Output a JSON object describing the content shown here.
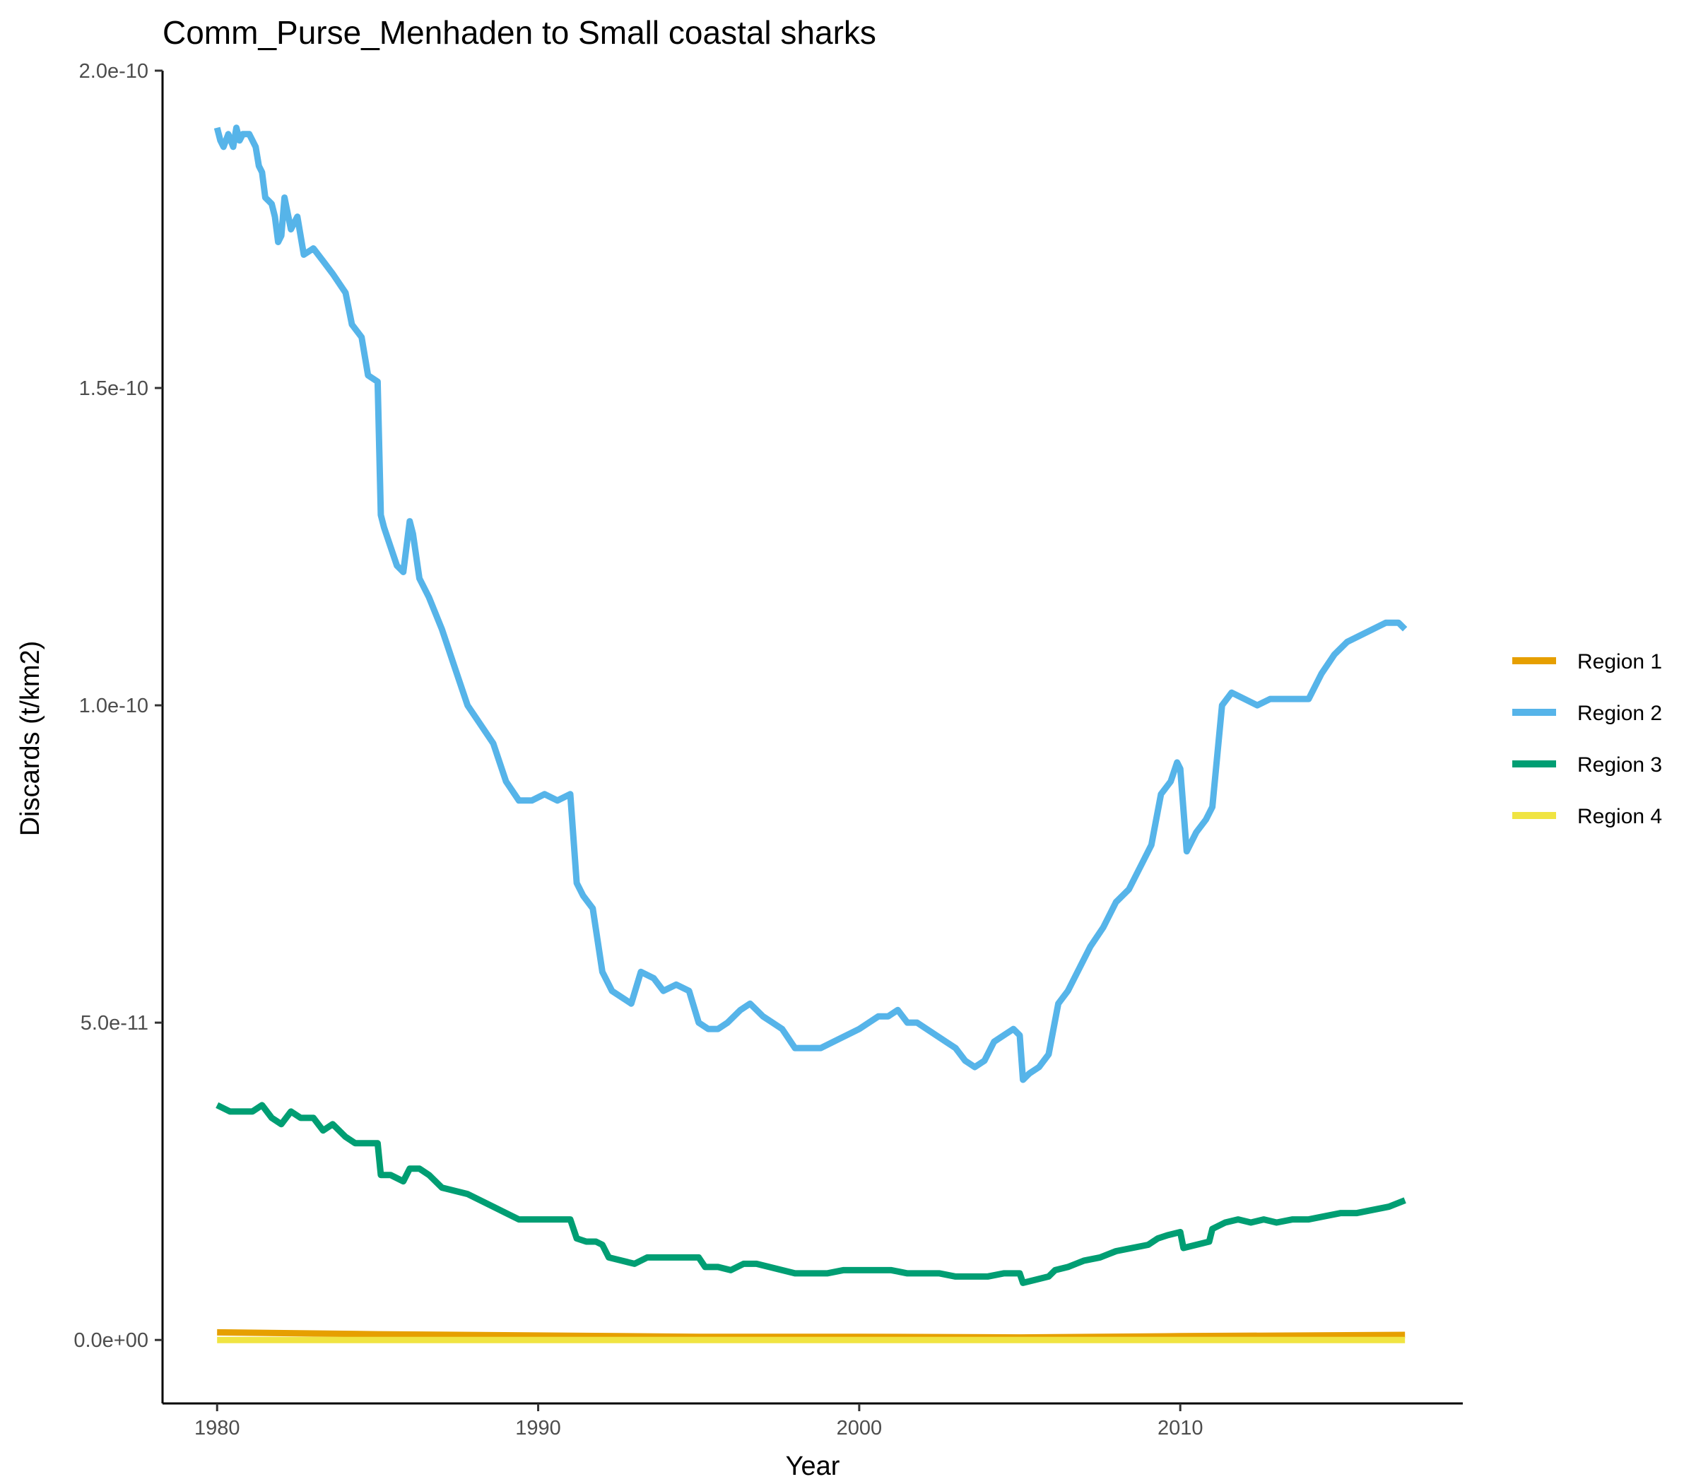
{
  "chart_data": {
    "type": "line",
    "title": "Comm_Purse_Menhaden to Small coastal sharks",
    "xlabel": "Year",
    "ylabel": "Discards (t/km2)",
    "xlim": [
      1978.3,
      2018.8
    ],
    "ylim": [
      -1e-11,
      2e-10
    ],
    "x_ticks": [
      1980,
      1990,
      2000,
      2010
    ],
    "x_tick_labels": [
      "1980",
      "1990",
      "2000",
      "2010"
    ],
    "y_ticks": [
      0,
      5e-11,
      1e-10,
      1.5e-10,
      2e-10
    ],
    "y_tick_labels": [
      "0.0e+00",
      "5.0e-11",
      "1.0e-10",
      "1.5e-10",
      "2.0e-10"
    ],
    "grid": false,
    "legend_position": "right",
    "series": [
      {
        "name": "Region 1",
        "color": "#E69F00",
        "x": [
          1980.0,
          1985.0,
          1990.0,
          1995.0,
          2000.0,
          2005.0,
          2010.0,
          2017.0
        ],
        "y": [
          1.2e-12,
          9e-13,
          7e-13,
          5e-13,
          5e-13,
          4e-13,
          6e-13,
          8e-13
        ]
      },
      {
        "name": "Region 2",
        "color": "#56B4E9",
        "x": [
          1980.0,
          1980.1,
          1980.2,
          1980.35,
          1980.5,
          1980.6,
          1980.7,
          1980.8,
          1981.0,
          1981.2,
          1981.3,
          1981.4,
          1981.5,
          1981.7,
          1981.8,
          1981.9,
          1982.0,
          1982.1,
          1982.3,
          1982.5,
          1982.7,
          1983.0,
          1983.3,
          1983.6,
          1984.0,
          1984.2,
          1984.5,
          1984.7,
          1985.0,
          1985.1,
          1985.2,
          1985.4,
          1985.6,
          1985.8,
          1986.0,
          1986.1,
          1986.3,
          1986.6,
          1987.0,
          1987.4,
          1987.8,
          1988.2,
          1988.6,
          1989.0,
          1989.4,
          1989.8,
          1990.2,
          1990.6,
          1991.0,
          1991.2,
          1991.4,
          1991.7,
          1992.0,
          1992.3,
          1992.6,
          1992.9,
          1993.2,
          1993.6,
          1993.9,
          1994.3,
          1994.7,
          1995.0,
          1995.3,
          1995.6,
          1995.9,
          1996.3,
          1996.6,
          1997.0,
          1997.3,
          1997.6,
          1998.0,
          1998.4,
          1998.8,
          1999.2,
          1999.6,
          2000.0,
          2000.3,
          2000.6,
          2000.9,
          2001.2,
          2001.5,
          2001.8,
          2002.1,
          2002.4,
          2002.7,
          2003.0,
          2003.3,
          2003.6,
          2003.9,
          2004.2,
          2004.5,
          2004.8,
          2005.0,
          2005.1,
          2005.3,
          2005.6,
          2005.9,
          2006.2,
          2006.5,
          2006.8,
          2007.2,
          2007.6,
          2008.0,
          2008.4,
          2008.8,
          2009.1,
          2009.4,
          2009.7,
          2009.9,
          2010.0,
          2010.2,
          2010.5,
          2010.8,
          2011.0,
          2011.3,
          2011.6,
          2012.0,
          2012.4,
          2012.8,
          2013.2,
          2013.6,
          2014.0,
          2014.4,
          2014.8,
          2015.2,
          2015.6,
          2016.0,
          2016.4,
          2016.8,
          2017.0
        ],
        "y": [
          1.91e-10,
          1.89e-10,
          1.88e-10,
          1.9e-10,
          1.88e-10,
          1.91e-10,
          1.89e-10,
          1.9e-10,
          1.9e-10,
          1.88e-10,
          1.85e-10,
          1.84e-10,
          1.8e-10,
          1.79e-10,
          1.77e-10,
          1.73e-10,
          1.74e-10,
          1.8e-10,
          1.75e-10,
          1.77e-10,
          1.71e-10,
          1.72e-10,
          1.7e-10,
          1.68e-10,
          1.65e-10,
          1.6e-10,
          1.58e-10,
          1.52e-10,
          1.51e-10,
          1.3e-10,
          1.28e-10,
          1.25e-10,
          1.22e-10,
          1.21e-10,
          1.29e-10,
          1.27e-10,
          1.2e-10,
          1.17e-10,
          1.12e-10,
          1.06e-10,
          1e-10,
          9.7e-11,
          9.4e-11,
          8.8e-11,
          8.5e-11,
          8.5e-11,
          8.6e-11,
          8.5e-11,
          8.6e-11,
          7.2e-11,
          7e-11,
          6.8e-11,
          5.8e-11,
          5.5e-11,
          5.4e-11,
          5.3e-11,
          5.8e-11,
          5.7e-11,
          5.5e-11,
          5.6e-11,
          5.5e-11,
          5e-11,
          4.9e-11,
          4.9e-11,
          5e-11,
          5.2e-11,
          5.3e-11,
          5.1e-11,
          5e-11,
          4.9e-11,
          4.6e-11,
          4.6e-11,
          4.6e-11,
          4.7e-11,
          4.8e-11,
          4.9e-11,
          5e-11,
          5.1e-11,
          5.1e-11,
          5.2e-11,
          5e-11,
          5e-11,
          4.9e-11,
          4.8e-11,
          4.7e-11,
          4.6e-11,
          4.4e-11,
          4.3e-11,
          4.4e-11,
          4.7e-11,
          4.8e-11,
          4.9e-11,
          4.8e-11,
          4.1e-11,
          4.2e-11,
          4.3e-11,
          4.5e-11,
          5.3e-11,
          5.5e-11,
          5.8e-11,
          6.2e-11,
          6.5e-11,
          6.9e-11,
          7.1e-11,
          7.5e-11,
          7.8e-11,
          8.6e-11,
          8.8e-11,
          9.1e-11,
          9e-11,
          7.7e-11,
          8e-11,
          8.2e-11,
          8.4e-11,
          1e-10,
          1.02e-10,
          1.01e-10,
          1e-10,
          1.01e-10,
          1.01e-10,
          1.01e-10,
          1.01e-10,
          1.05e-10,
          1.08e-10,
          1.1e-10,
          1.11e-10,
          1.12e-10,
          1.13e-10,
          1.13e-10,
          1.12e-10
        ]
      },
      {
        "name": "Region 3",
        "color": "#009E73",
        "x": [
          1980.0,
          1980.4,
          1980.8,
          1981.1,
          1981.4,
          1981.7,
          1982.0,
          1982.3,
          1982.6,
          1983.0,
          1983.3,
          1983.6,
          1984.0,
          1984.3,
          1984.6,
          1985.0,
          1985.1,
          1985.4,
          1985.8,
          1986.0,
          1986.3,
          1986.6,
          1987.0,
          1987.4,
          1987.8,
          1988.2,
          1988.6,
          1989.0,
          1989.4,
          1989.8,
          1990.2,
          1990.6,
          1991.0,
          1991.2,
          1991.5,
          1991.8,
          1992.0,
          1992.2,
          1992.6,
          1993.0,
          1993.4,
          1993.8,
          1994.2,
          1994.6,
          1995.0,
          1995.2,
          1995.6,
          1996.0,
          1996.4,
          1996.8,
          1997.2,
          1997.6,
          1998.0,
          1998.5,
          1999.0,
          1999.5,
          2000.0,
          2000.5,
          2001.0,
          2001.5,
          2002.0,
          2002.5,
          2003.0,
          2003.5,
          2004.0,
          2004.5,
          2005.0,
          2005.1,
          2005.5,
          2005.9,
          2006.1,
          2006.5,
          2007.0,
          2007.5,
          2008.0,
          2008.5,
          2009.0,
          2009.3,
          2009.6,
          2010.0,
          2010.1,
          2010.5,
          2010.9,
          2011.0,
          2011.4,
          2011.8,
          2012.2,
          2012.6,
          2013.0,
          2013.5,
          2014.0,
          2014.5,
          2015.0,
          2015.5,
          2016.0,
          2016.5,
          2017.0
        ],
        "y": [
          3.7e-11,
          3.6e-11,
          3.6e-11,
          3.6e-11,
          3.7e-11,
          3.5e-11,
          3.4e-11,
          3.6e-11,
          3.5e-11,
          3.5e-11,
          3.3e-11,
          3.4e-11,
          3.2e-11,
          3.1e-11,
          3.1e-11,
          3.1e-11,
          2.6e-11,
          2.6e-11,
          2.5e-11,
          2.7e-11,
          2.7e-11,
          2.6e-11,
          2.4e-11,
          2.35e-11,
          2.3e-11,
          2.2e-11,
          2.1e-11,
          2e-11,
          1.9e-11,
          1.9e-11,
          1.9e-11,
          1.9e-11,
          1.9e-11,
          1.6e-11,
          1.55e-11,
          1.55e-11,
          1.5e-11,
          1.3e-11,
          1.25e-11,
          1.2e-11,
          1.3e-11,
          1.3e-11,
          1.3e-11,
          1.3e-11,
          1.3e-11,
          1.15e-11,
          1.15e-11,
          1.1e-11,
          1.2e-11,
          1.2e-11,
          1.15e-11,
          1.1e-11,
          1.05e-11,
          1.05e-11,
          1.05e-11,
          1.1e-11,
          1.1e-11,
          1.1e-11,
          1.1e-11,
          1.05e-11,
          1.05e-11,
          1.05e-11,
          1e-11,
          1e-11,
          1e-11,
          1.05e-11,
          1.05e-11,
          9e-12,
          9.5e-12,
          1e-11,
          1.1e-11,
          1.15e-11,
          1.25e-11,
          1.3e-11,
          1.4e-11,
          1.45e-11,
          1.5e-11,
          1.6e-11,
          1.65e-11,
          1.7e-11,
          1.45e-11,
          1.5e-11,
          1.55e-11,
          1.75e-11,
          1.85e-11,
          1.9e-11,
          1.85e-11,
          1.9e-11,
          1.85e-11,
          1.9e-11,
          1.9e-11,
          1.95e-11,
          2e-11,
          2e-11,
          2.05e-11,
          2.1e-11,
          2.2e-11
        ]
      },
      {
        "name": "Region 4",
        "color": "#F0E442",
        "x": [
          1980.0,
          1990.0,
          2000.0,
          2010.0,
          2017.0
        ],
        "y": [
          0,
          0,
          0,
          0,
          0
        ]
      }
    ]
  }
}
